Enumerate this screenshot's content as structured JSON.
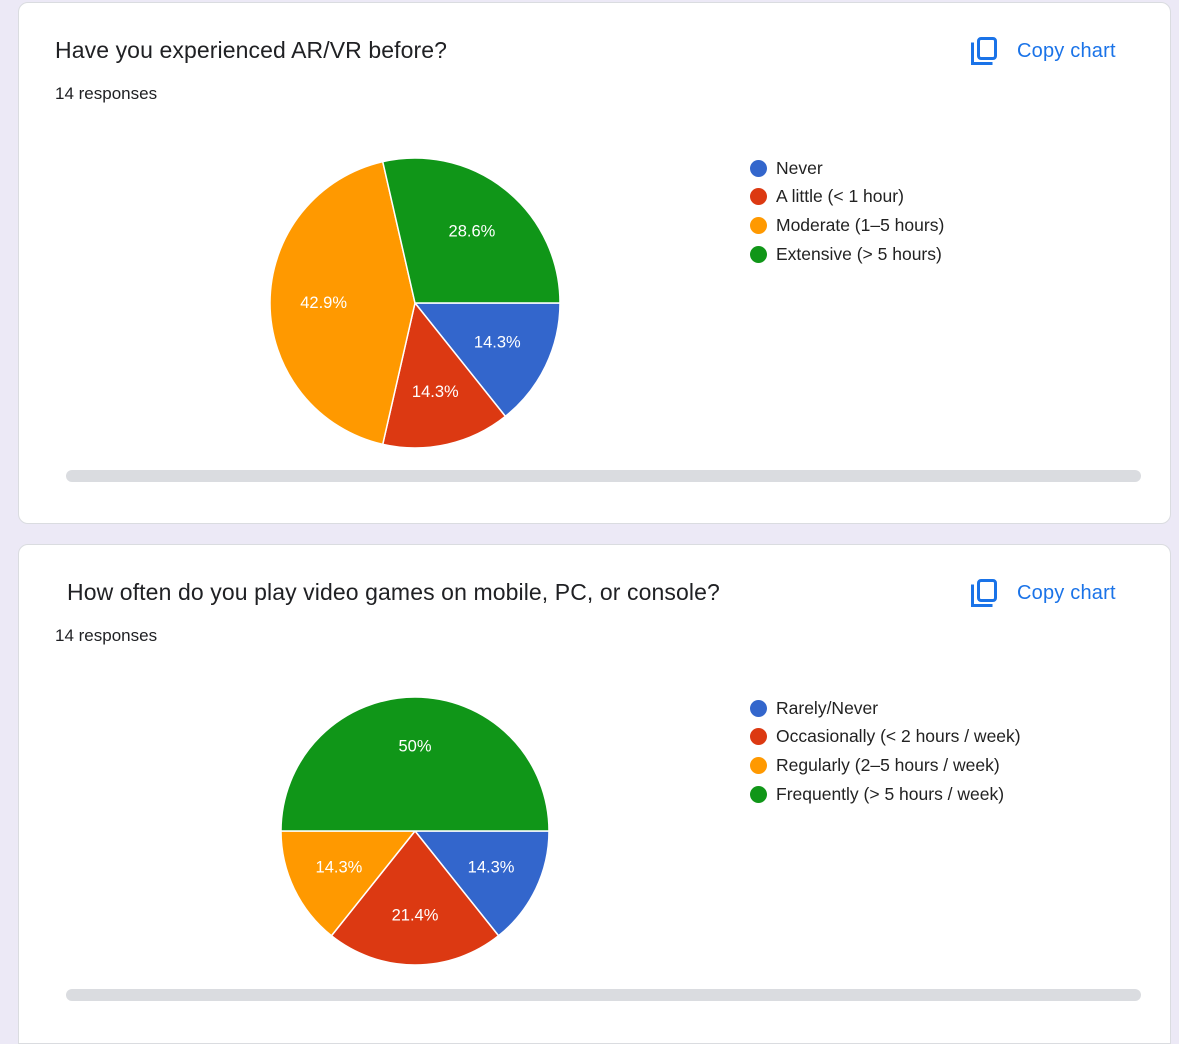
{
  "copy_chart_label": "Copy chart",
  "icons": {
    "copy": "copy-icon"
  },
  "colors": {
    "blue": "#3366cc",
    "red": "#dc3912",
    "orange": "#ff9900",
    "green": "#109618"
  },
  "cards": [
    {
      "title": "Have you experienced AR/VR before?",
      "responses": "14 responses"
    },
    {
      "title": "How often do you play video games on mobile, PC, or console?",
      "responses": "14 responses"
    }
  ],
  "chart_data": [
    {
      "type": "pie",
      "title": "Have you experienced AR/VR before?",
      "total": 14,
      "legend_position": "right",
      "slices": [
        {
          "label": "Never",
          "value": 2,
          "percent_label": "14.3%",
          "color": "#3366cc"
        },
        {
          "label": "A little (< 1 hour)",
          "value": 2,
          "percent_label": "14.3%",
          "color": "#dc3912"
        },
        {
          "label": "Moderate (1–5 hours)",
          "value": 6,
          "percent_label": "42.9%",
          "color": "#ff9900"
        },
        {
          "label": "Extensive (> 5 hours)",
          "value": 4,
          "percent_label": "28.6%",
          "color": "#109618"
        }
      ]
    },
    {
      "type": "pie",
      "title": "How often do you play video games on mobile, PC, or console?",
      "total": 14,
      "legend_position": "right",
      "slices": [
        {
          "label": "Rarely/Never",
          "value": 2,
          "percent_label": "14.3%",
          "color": "#3366cc"
        },
        {
          "label": "Occasionally (< 2 hours / week)",
          "value": 3,
          "percent_label": "21.4%",
          "color": "#dc3912"
        },
        {
          "label": "Regularly (2–5 hours / week)",
          "value": 2,
          "percent_label": "14.3%",
          "color": "#ff9900"
        },
        {
          "label": "Frequently (> 5 hours / week)",
          "value": 7,
          "percent_label": "50%",
          "color": "#109618"
        }
      ]
    }
  ]
}
